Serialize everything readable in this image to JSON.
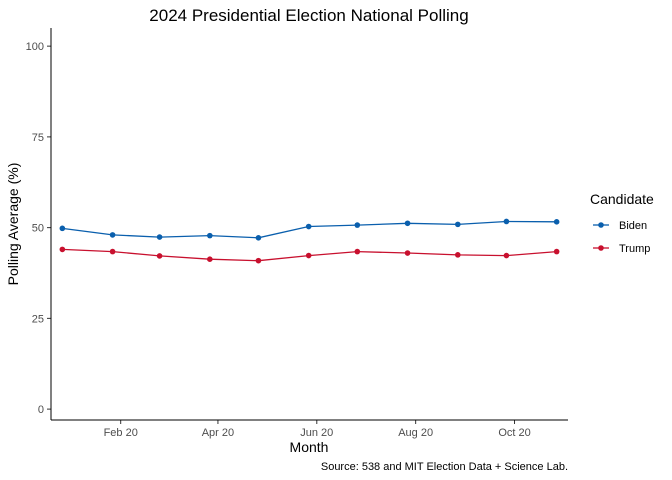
{
  "chart_data": {
    "type": "line",
    "title": "2024 Presidential Election National Polling",
    "xlabel": "Month",
    "ylabel": "Polling Average (%)",
    "caption": "Source: 538 and MIT Election Data + Science Lab.",
    "x": [
      "2024-01-15",
      "2024-02-15",
      "2024-03-15",
      "2024-04-15",
      "2024-05-15",
      "2024-06-15",
      "2024-07-15",
      "2024-08-15",
      "2024-09-15",
      "2024-10-15",
      "2024-11-15"
    ],
    "x_ticks": [
      {
        "date": "2024-02-20",
        "label": "Feb 20"
      },
      {
        "date": "2024-04-20",
        "label": "Apr 20"
      },
      {
        "date": "2024-06-20",
        "label": "Jun 20"
      },
      {
        "date": "2024-08-20",
        "label": "Aug 20"
      },
      {
        "date": "2024-10-20",
        "label": "Oct 20"
      }
    ],
    "xlim": [
      "2024-01-08",
      "2024-11-22"
    ],
    "ylim": [
      -3,
      105
    ],
    "y_ticks": [
      0,
      25,
      50,
      75,
      100
    ],
    "grid": false,
    "legend": {
      "title": "Candidate",
      "position": "right"
    },
    "series": [
      {
        "name": "Biden",
        "color": "#0a5fad",
        "values": [
          49.8,
          48.0,
          47.4,
          47.8,
          47.2,
          50.3,
          50.7,
          51.2,
          50.9,
          51.7,
          51.6
        ]
      },
      {
        "name": "Trump",
        "color": "#c8102e",
        "values": [
          44.0,
          43.4,
          42.2,
          41.3,
          40.9,
          42.3,
          43.4,
          43.0,
          42.5,
          42.3,
          43.4
        ]
      }
    ]
  }
}
